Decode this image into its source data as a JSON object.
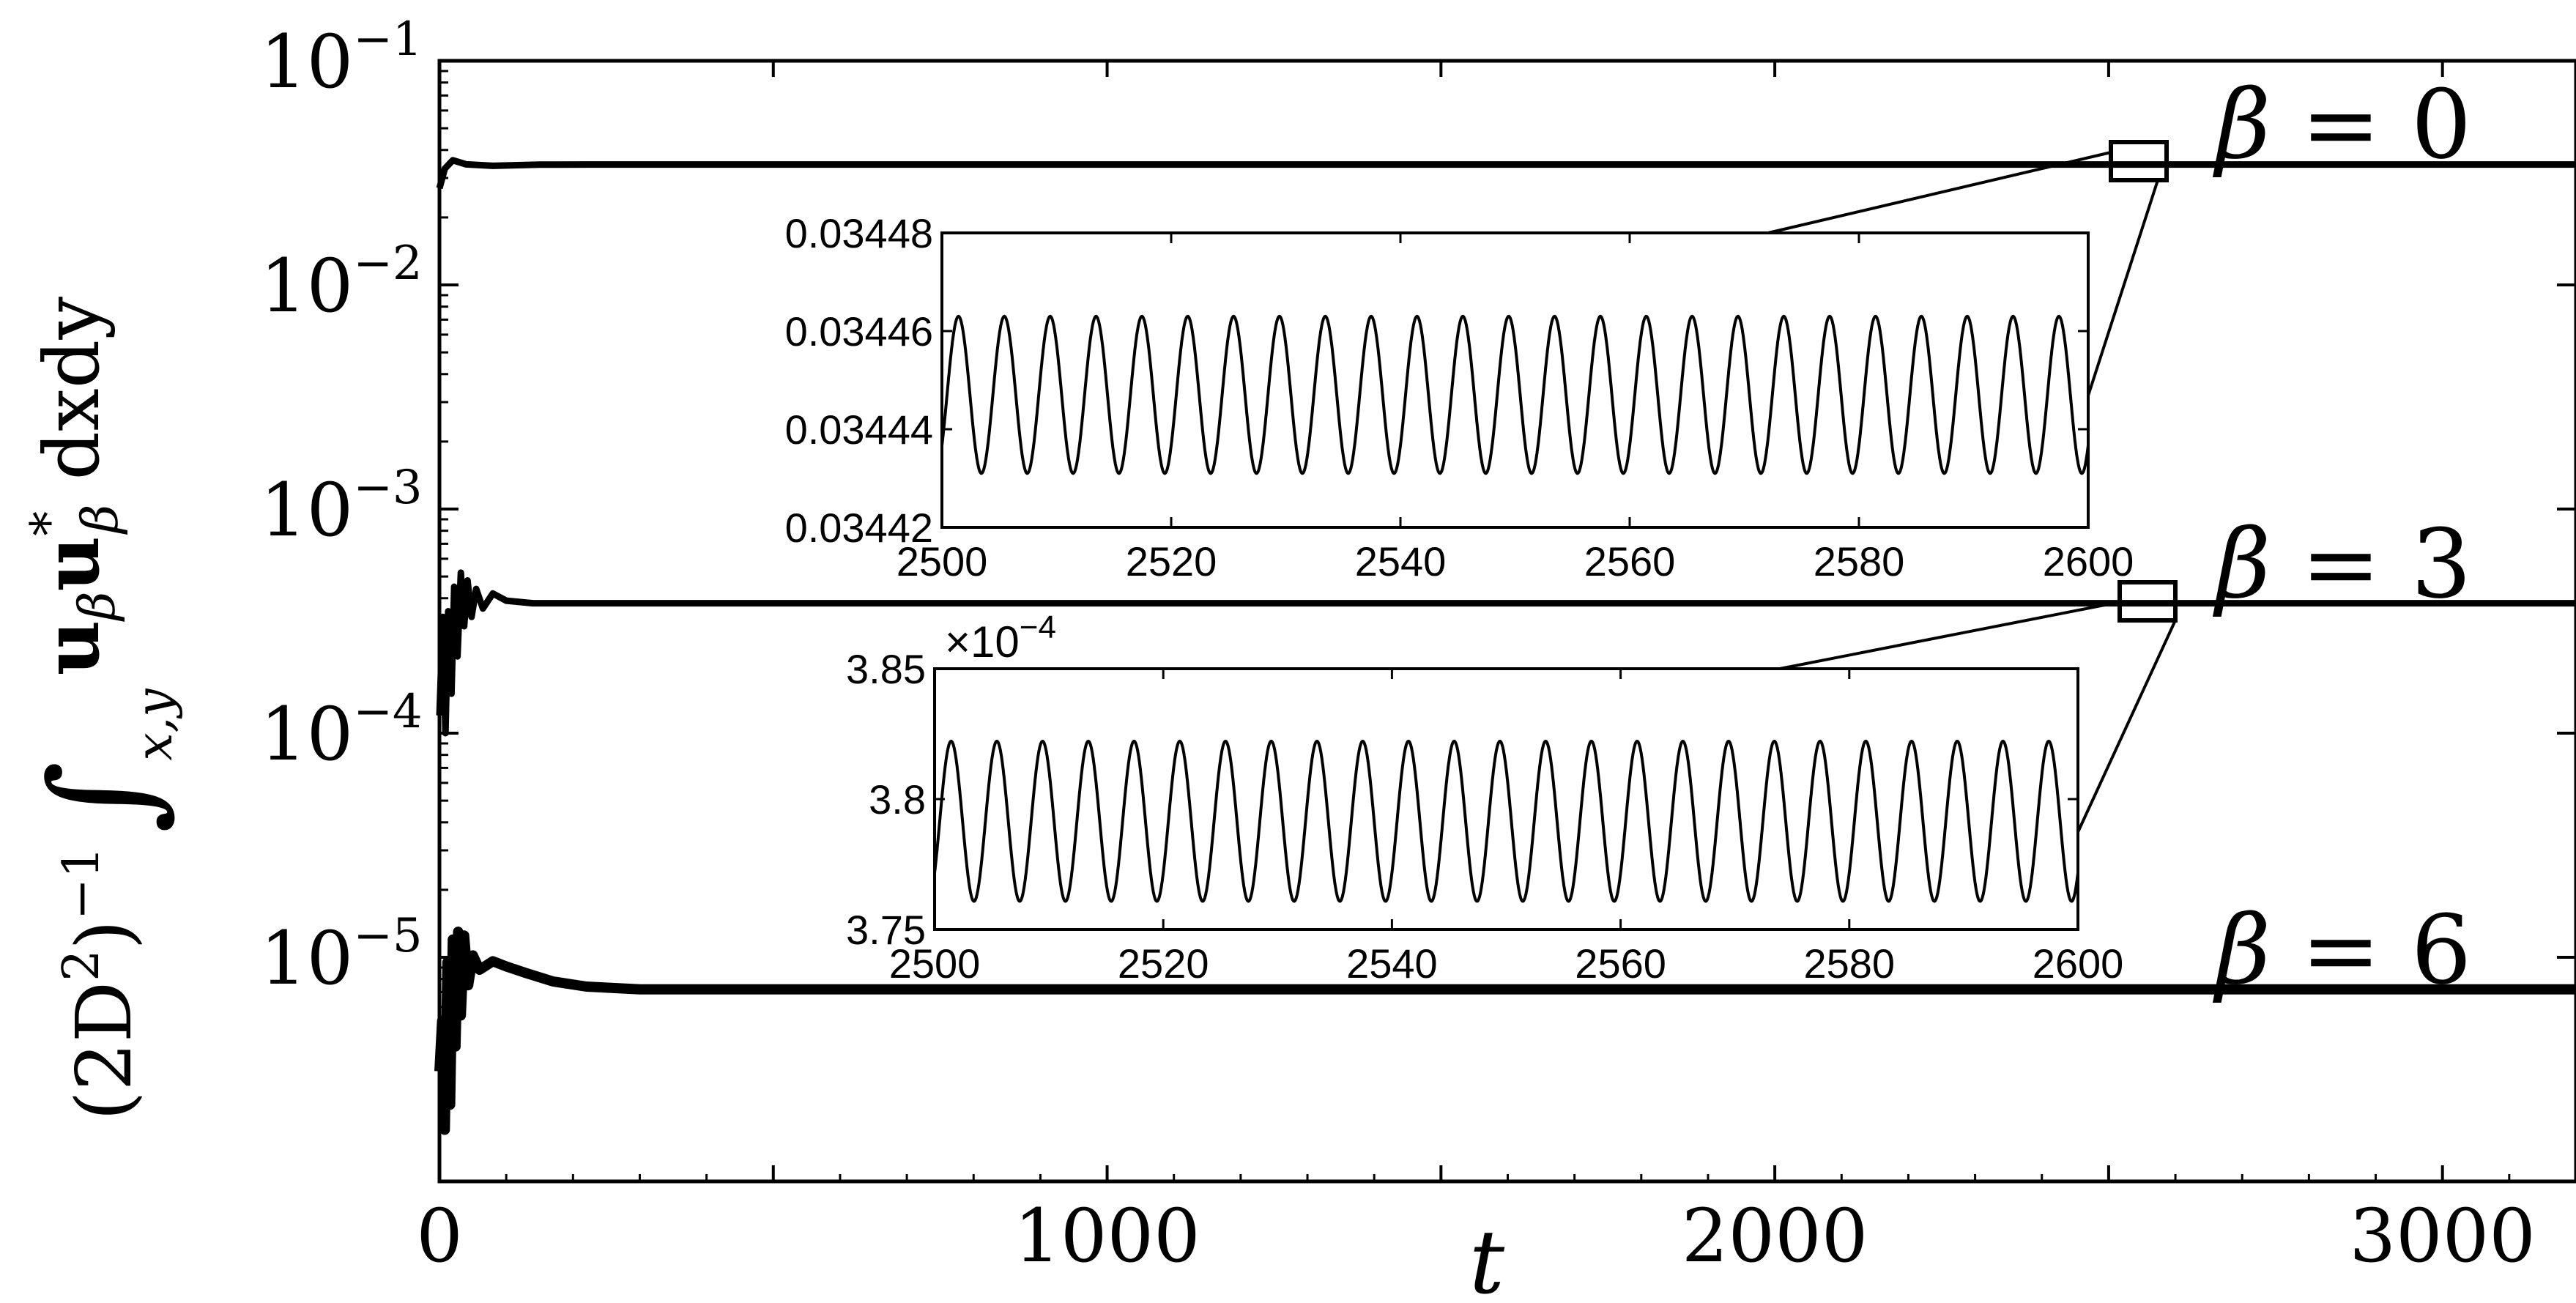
{
  "chart_data": [
    {
      "type": "line",
      "xlabel": "t",
      "ylabel": {
        "prefix": "(2D",
        "sup1": "2",
        "mid": ")",
        "sup2": "−1",
        "integral": "∫",
        "integral_sub": "x,y",
        "body": "u",
        "body_sub": "β",
        "body2": "u",
        "body2_sup": "*",
        "body2_sub": "β",
        "tail": " dxdy"
      },
      "yscale": "log",
      "xlim": [
        0,
        3200
      ],
      "ylim": [
        1e-06,
        0.1
      ],
      "x_ticks": [
        0,
        1000,
        2000,
        3000
      ],
      "x_tick_labels": [
        "0",
        "1000",
        "2000",
        "3000"
      ],
      "y_ticks": [
        0.1,
        0.01,
        0.001,
        0.0001,
        1e-05
      ],
      "y_tick_labels": [
        {
          "base": "10",
          "exp": "−1"
        },
        {
          "base": "10",
          "exp": "−2"
        },
        {
          "base": "10",
          "exp": "−3"
        },
        {
          "base": "10",
          "exp": "−4"
        },
        {
          "base": "10",
          "exp": "−5"
        }
      ],
      "grid": false,
      "series": [
        {
          "label_sym": "β",
          "label_eq": " = 0",
          "steady": 0.03445,
          "transient": [
            [
              0,
              0.027
            ],
            [
              8,
              0.033
            ],
            [
              20,
              0.036
            ],
            [
              40,
              0.0345
            ],
            [
              80,
              0.034
            ],
            [
              150,
              0.0344
            ],
            [
              220,
              0.03445
            ]
          ]
        },
        {
          "label_sym": "β",
          "label_eq": " = 3",
          "steady": 0.00038,
          "transient": [
            [
              0,
              0.00012
            ],
            [
              5,
              0.00033
            ],
            [
              9,
              0.0001
            ],
            [
              13,
              0.00035
            ],
            [
              18,
              0.00015
            ],
            [
              22,
              0.00045
            ],
            [
              27,
              0.00022
            ],
            [
              32,
              0.00052
            ],
            [
              37,
              0.0003
            ],
            [
              42,
              0.00048
            ],
            [
              48,
              0.00033
            ],
            [
              55,
              0.00044
            ],
            [
              65,
              0.00036
            ],
            [
              80,
              0.00042
            ],
            [
              100,
              0.00039
            ],
            [
              140,
              0.00038
            ],
            [
              200,
              0.00038
            ]
          ]
        },
        {
          "label_sym": "β",
          "label_eq": " = 6",
          "steady": 7.2e-06,
          "transient": [
            [
              0,
              3.1e-06
            ],
            [
              4,
              5.2e-06
            ],
            [
              8,
              1.7e-06
            ],
            [
              12,
              9.5e-06
            ],
            [
              16,
              2.2e-06
            ],
            [
              20,
              1.2e-05
            ],
            [
              24,
              4e-06
            ],
            [
              28,
              1.3e-05
            ],
            [
              32,
              5.5e-06
            ],
            [
              37,
              1.25e-05
            ],
            [
              43,
              7.5e-06
            ],
            [
              50,
              1.02e-05
            ],
            [
              60,
              8.8e-06
            ],
            [
              80,
              9.6e-06
            ],
            [
              100,
              9.1e-06
            ],
            [
              130,
              8.5e-06
            ],
            [
              170,
              7.8e-06
            ],
            [
              220,
              7.4e-06
            ],
            [
              300,
              7.2e-06
            ]
          ]
        }
      ]
    },
    {
      "type": "line",
      "role": "inset",
      "xlim": [
        2500,
        2600
      ],
      "ylim": [
        0.03442,
        0.03448
      ],
      "x_tick_labels": [
        "2500",
        "2520",
        "2540",
        "2560",
        "2580",
        "2600"
      ],
      "y_tick_labels": [
        "0.03442",
        "0.03444",
        "0.03446",
        "0.03448"
      ],
      "oscillation": {
        "mean": 0.034447,
        "amplitude": 1.6e-05,
        "period": 4.0
      }
    },
    {
      "type": "line",
      "role": "inset",
      "xlim": [
        2500,
        2600
      ],
      "ylim": [
        3.75,
        3.85
      ],
      "offset_text": {
        "base": "×10",
        "exp": "−4"
      },
      "x_tick_labels": [
        "2500",
        "2520",
        "2540",
        "2560",
        "2580",
        "2600"
      ],
      "y_tick_labels": [
        "3.75",
        "3.8",
        "3.85"
      ],
      "oscillation": {
        "mean": 3.7915,
        "amplitude": 0.0307,
        "period": 4.0
      }
    }
  ]
}
